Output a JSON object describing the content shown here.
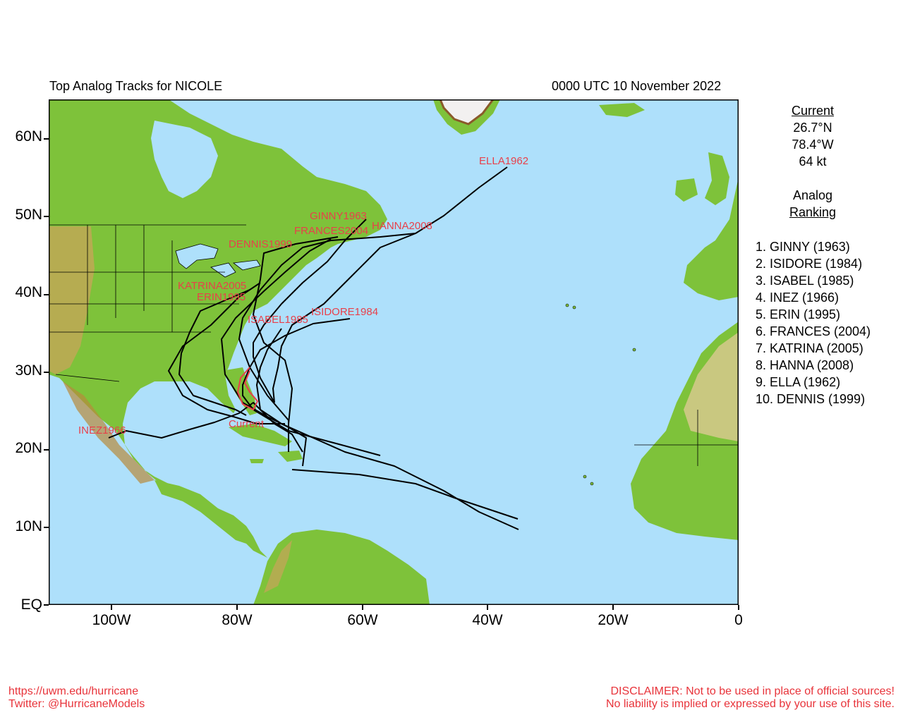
{
  "header": {
    "title": "Top Analog Tracks for NICOLE",
    "timestamp": "0000 UTC 10 November 2022"
  },
  "axes": {
    "y_labels": [
      "60N",
      "50N",
      "40N",
      "30N",
      "20N",
      "10N",
      "EQ"
    ],
    "x_labels": [
      "100W",
      "80W",
      "60W",
      "40W",
      "20W",
      "0"
    ]
  },
  "current": {
    "heading": "Current",
    "lat": "26.7°N",
    "lon": "78.4°W",
    "wind": "64 kt",
    "map_label": "Current"
  },
  "analog": {
    "heading_line1": "Analog",
    "heading_line2": "Ranking",
    "ranking": [
      "1.  GINNY (1963)",
      "2.  ISIDORE (1984)",
      "3.  ISABEL (1985)",
      "4.  INEZ (1966)",
      "5.  ERIN (1995)",
      "6.  FRANCES (2004)",
      "7.  KATRINA (2005)",
      "8.  HANNA (2008)",
      "9.  ELLA (1962)",
      "10. DENNIS (1999)"
    ]
  },
  "track_labels": {
    "ella": "ELLA1962",
    "ginny": "GINNY1963",
    "frances": "FRANCES2004",
    "hanna": "HANNA2008",
    "dennis": "DENNIS1999",
    "katrina": "KATRINA2005",
    "erin": "ERIN1995",
    "isidore": "ISIDORE1984",
    "isabel": "ISABEL1985",
    "inez": "INEZ1966"
  },
  "footer": {
    "url": "https://uwm.edu/hurricane",
    "twitter": "Twitter: @HurricaneModels",
    "disclaimer1": "DISCLAIMER: Not to be used in place of official sources!",
    "disclaimer2": "No liability is implied or expressed by your use of this site."
  },
  "colors": {
    "ocean": "#aee0fb",
    "land": "#7ec23a",
    "track": "#000000",
    "label": "#e8404a"
  }
}
